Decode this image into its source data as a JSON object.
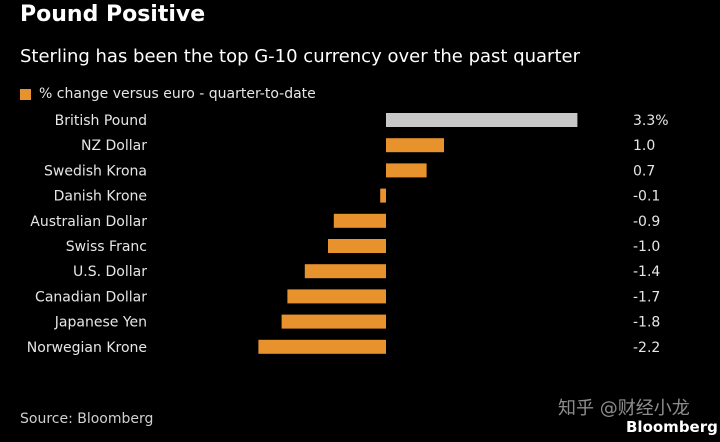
{
  "header": {
    "title": "Pound Positive",
    "subtitle": "Sterling has been the top G-10 currency over the past quarter"
  },
  "legend": {
    "label": "% change versus euro - quarter-to-date",
    "color": "#e8922e"
  },
  "chart_data": {
    "type": "bar",
    "orientation": "horizontal",
    "categories": [
      "British Pound",
      "NZ Dollar",
      "Swedish Krona",
      "Danish Krone",
      "Australian Dollar",
      "Swiss Franc",
      "U.S. Dollar",
      "Canadian Dollar",
      "Japanese Yen",
      "Norwegian Krone"
    ],
    "values": [
      3.3,
      1.0,
      0.7,
      -0.1,
      -0.9,
      -1.0,
      -1.4,
      -1.7,
      -1.8,
      -2.2
    ],
    "labels": [
      "3.3%",
      "1.0",
      "0.7",
      "-0.1",
      "-0.9",
      "-1.0",
      "-1.4",
      "-1.7",
      "-1.8",
      "-2.2"
    ],
    "highlight": "British Pound",
    "colors": {
      "default": "#e8922e",
      "highlight": "#c8c8c8"
    },
    "grid": false
  },
  "footer": {
    "source": "Source: Bloomberg",
    "watermark": "知乎 @财经小龙",
    "brand": "Bloomberg"
  }
}
